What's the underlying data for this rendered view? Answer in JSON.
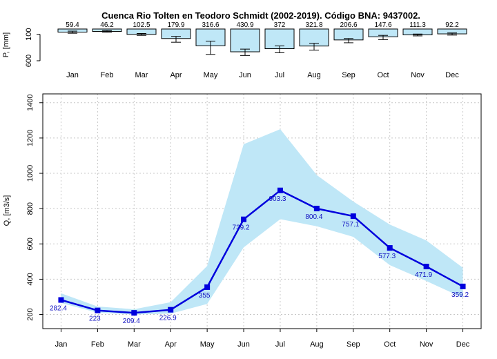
{
  "chart_data": [
    {
      "type": "bar",
      "title": "Cuenca Rio Tolten en Teodoro Schmidt (2002-2019). Código BNA: 9437002.",
      "ylabel": "P, [mm]",
      "ylim": [
        600,
        0
      ],
      "inverted_y": true,
      "y_ticks": [
        100,
        600
      ],
      "categories": [
        "Jan",
        "Feb",
        "Mar",
        "Apr",
        "May",
        "Jun",
        "Jul",
        "Aug",
        "Sep",
        "Oct",
        "Nov",
        "Dec"
      ],
      "values": [
        59.4,
        46.2,
        102.5,
        179.9,
        316.6,
        430.9,
        372,
        321.8,
        206.6,
        147.6,
        111.3,
        92.2
      ],
      "value_labels": [
        "59.4",
        "46.2",
        "102.5",
        "179.9",
        "316.6",
        "430.9",
        "372",
        "321.8",
        "206.6",
        "147.6",
        "111.3",
        "92.2"
      ],
      "error_low": [
        40,
        30,
        85,
        140,
        230,
        380,
        320,
        270,
        180,
        120,
        95,
        75
      ],
      "error_high": [
        80,
        60,
        120,
        250,
        480,
        500,
        450,
        400,
        260,
        200,
        130,
        115
      ],
      "bar_color": "#bfe7f7",
      "grid": false
    },
    {
      "type": "line",
      "ylabel": "Q, [m3/s]",
      "ylim": [
        120,
        1450
      ],
      "y_ticks": [
        200,
        400,
        600,
        800,
        1000,
        1200,
        1400
      ],
      "categories": [
        "Jan",
        "Feb",
        "Mar",
        "Apr",
        "May",
        "Jun",
        "Jul",
        "Aug",
        "Sep",
        "Oct",
        "Nov",
        "Dec"
      ],
      "series": [
        {
          "values": [
            282.4,
            223,
            209.4,
            226.9,
            355,
            739.2,
            903.3,
            800.4,
            757.1,
            577.3,
            471.9,
            359.2
          ],
          "labels": [
            "282.4",
            "223",
            "209.4",
            "226.9",
            "355",
            "739.2",
            "903.3",
            "800.4",
            "757.1",
            "577.3",
            "471.9",
            "359.2"
          ],
          "color": "#0000dd"
        }
      ],
      "band": {
        "low": [
          265,
          210,
          200,
          205,
          260,
          580,
          740,
          700,
          640,
          480,
          390,
          295
        ],
        "high": [
          320,
          245,
          230,
          270,
          475,
          1165,
          1250,
          990,
          840,
          710,
          620,
          465
        ],
        "color": "#bfe7f7"
      },
      "grid": true
    }
  ]
}
